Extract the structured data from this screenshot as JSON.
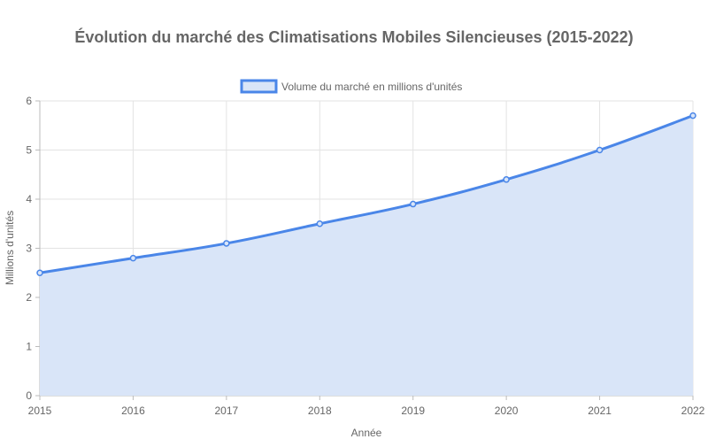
{
  "chart_data": {
    "type": "area",
    "title": "Évolution du marché des Climatisations Mobiles Silencieuses (2015-2022)",
    "xlabel": "Année",
    "ylabel": "Millions d'unités",
    "categories": [
      "2015",
      "2016",
      "2017",
      "2018",
      "2019",
      "2020",
      "2021",
      "2022"
    ],
    "series": [
      {
        "name": "Volume du marché en millions d'unités",
        "values": [
          2.5,
          2.8,
          3.1,
          3.5,
          3.9,
          4.4,
          5.0,
          5.7
        ],
        "line_color": "#4a86e8",
        "fill_color": "#d9e5f8"
      }
    ],
    "ylim": [
      0,
      6
    ],
    "yticks": [
      "0",
      "1",
      "2",
      "3",
      "4",
      "5",
      "6"
    ],
    "grid": true,
    "legend_position": "top-center"
  }
}
